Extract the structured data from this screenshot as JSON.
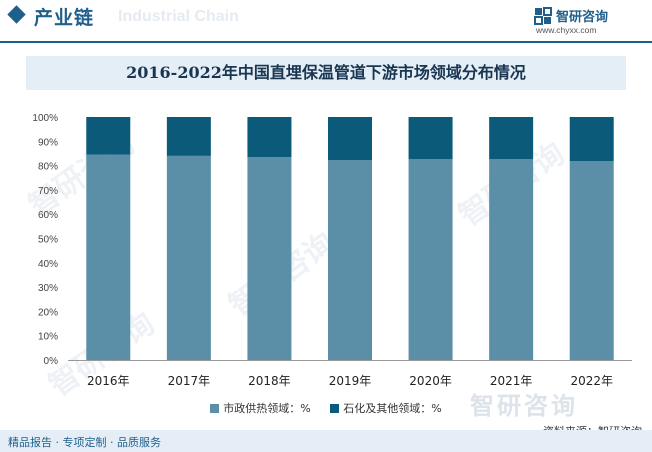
{
  "header": {
    "title": "产业链",
    "watermark_text": "Industrial Chain"
  },
  "brand": {
    "name": "智研咨询",
    "url": "www.chyxx.com"
  },
  "watermark": {
    "text": "智研咨询"
  },
  "footer": {
    "text": "精品报告 · 专项定制 · 品质服务",
    "source": "资料来源：智研咨询"
  },
  "colors": {
    "brand": "#1f5f8b",
    "series_municipal": "#5b8fa8",
    "series_petro": "#0b5a7a"
  },
  "chart_data": {
    "type": "bar",
    "stacked": true,
    "percent_stacked": true,
    "title": "2016-2022年中国直埋保温管道下游市场领域分布情况",
    "xlabel": "",
    "ylabel": "",
    "categories": [
      "2016年",
      "2017年",
      "2018年",
      "2019年",
      "2020年",
      "2021年",
      "2022年"
    ],
    "series": [
      {
        "name": "市政供热领域：%",
        "values": [
          84.5,
          84.0,
          83.5,
          82.3,
          82.6,
          82.6,
          81.8
        ],
        "color": "#5b8fa8"
      },
      {
        "name": "石化及其他领域：%",
        "values": [
          15.5,
          16.0,
          16.5,
          17.7,
          17.4,
          17.4,
          18.2
        ],
        "color": "#0b5a7a"
      }
    ],
    "ylim": [
      0,
      100
    ],
    "yticks": [
      "0%",
      "10%",
      "20%",
      "30%",
      "40%",
      "50%",
      "60%",
      "70%",
      "80%",
      "90%",
      "100%"
    ],
    "grid": false,
    "legend_position": "bottom"
  }
}
